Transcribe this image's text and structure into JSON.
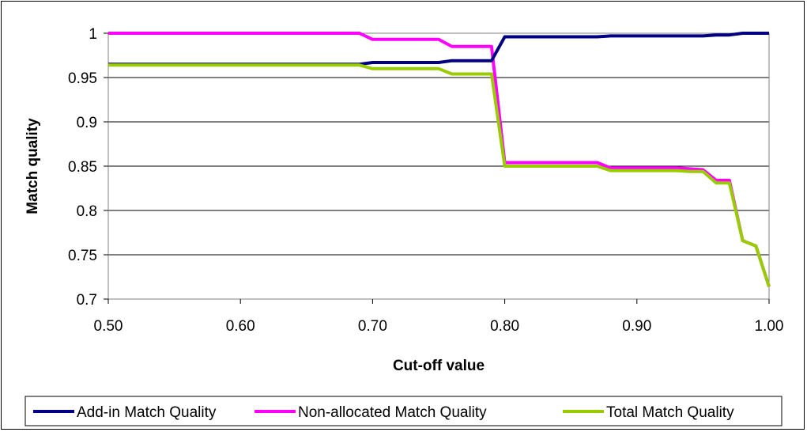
{
  "chart_data": {
    "type": "line",
    "title": "",
    "xlabel": "Cut-off value",
    "ylabel": "Match quality",
    "xlim": [
      0.5,
      1.0
    ],
    "ylim": [
      0.7,
      1.0
    ],
    "x_ticks": [
      "0.50",
      "0.60",
      "0.70",
      "0.80",
      "0.90",
      "1.00"
    ],
    "y_ticks": [
      "0.7",
      "0.75",
      "0.8",
      "0.85",
      "0.9",
      "0.95",
      "1"
    ],
    "grid": "horizontal",
    "legend_position": "bottom",
    "series": [
      {
        "name": "Add-in Match Quality",
        "color": "#000080",
        "x": [
          0.5,
          0.69,
          0.7,
          0.75,
          0.76,
          0.79,
          0.8,
          0.87,
          0.88,
          0.93,
          0.95,
          0.96,
          0.97,
          0.98,
          1.0
        ],
        "y": [
          0.965,
          0.965,
          0.967,
          0.967,
          0.969,
          0.969,
          0.996,
          0.996,
          0.997,
          0.997,
          0.997,
          0.998,
          0.998,
          1.0,
          1.0
        ]
      },
      {
        "name": "Non-allocated Match Quality",
        "color": "#ff00ff",
        "x": [
          0.5,
          0.69,
          0.7,
          0.75,
          0.76,
          0.79,
          0.8,
          0.87,
          0.88,
          0.93,
          0.94,
          0.95,
          0.96,
          0.97,
          0.98,
          0.99,
          1.0
        ],
        "y": [
          1.0,
          1.0,
          0.993,
          0.993,
          0.985,
          0.985,
          0.854,
          0.854,
          0.848,
          0.848,
          0.847,
          0.846,
          0.834,
          0.834,
          0.766,
          0.76,
          0.714
        ]
      },
      {
        "name": "Total Match Quality",
        "color": "#99cc00",
        "x": [
          0.5,
          0.69,
          0.7,
          0.75,
          0.76,
          0.79,
          0.8,
          0.87,
          0.88,
          0.93,
          0.94,
          0.95,
          0.96,
          0.97,
          0.98,
          0.99,
          1.0
        ],
        "y": [
          0.964,
          0.964,
          0.96,
          0.96,
          0.954,
          0.954,
          0.85,
          0.85,
          0.845,
          0.845,
          0.844,
          0.844,
          0.831,
          0.831,
          0.766,
          0.76,
          0.714
        ]
      }
    ]
  }
}
